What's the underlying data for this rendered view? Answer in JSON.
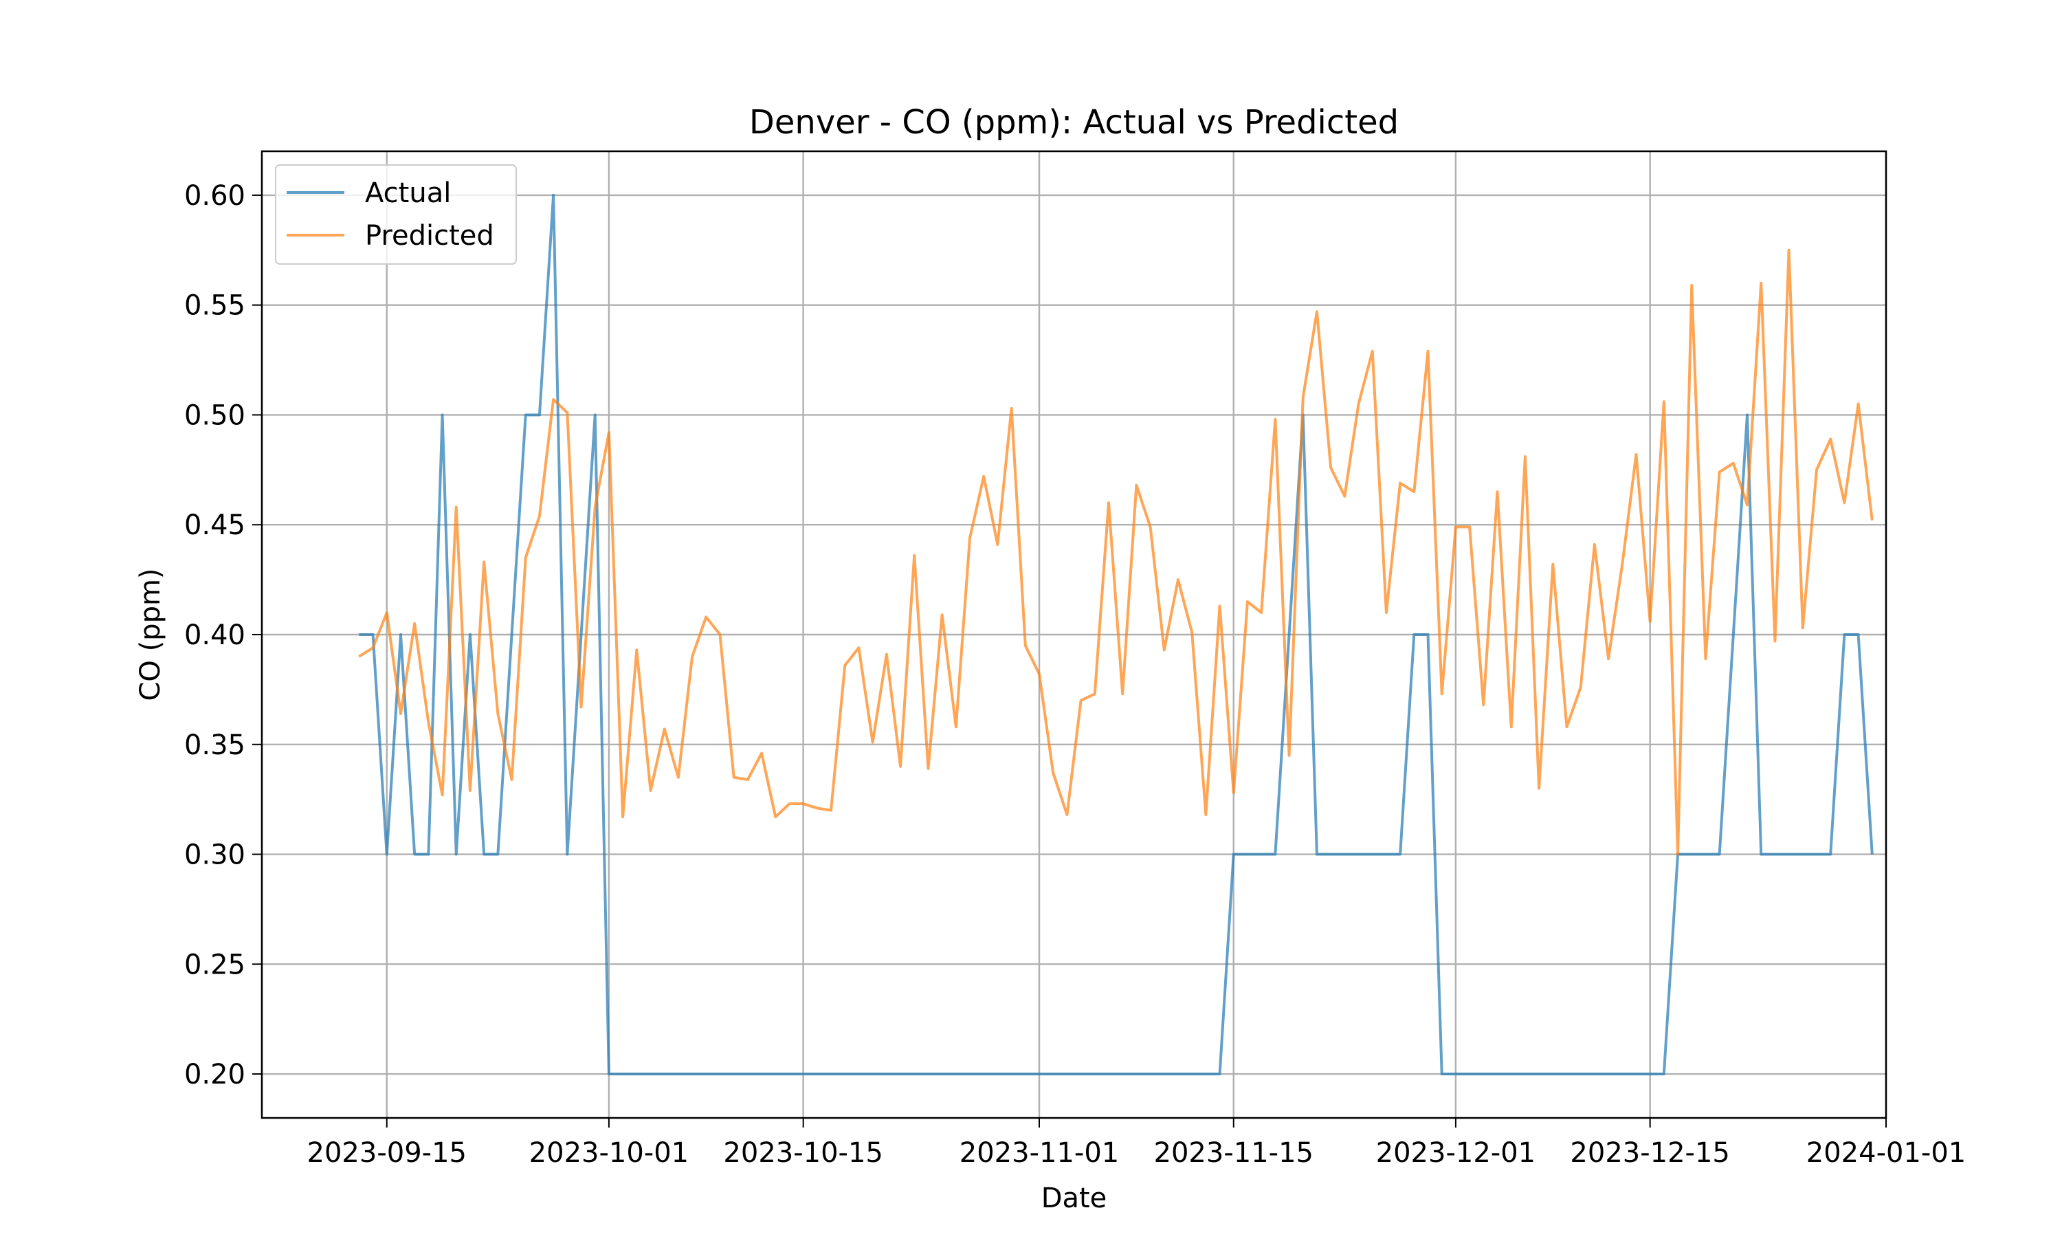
{
  "chart_data": {
    "type": "line",
    "title": "Denver - CO (ppm): Actual vs Predicted",
    "xlabel": "Date",
    "ylabel": "CO (ppm)",
    "x_axis_type": "date",
    "xlim": [
      "2023-09-06",
      "2024-01-01"
    ],
    "ylim": [
      0.18,
      0.62
    ],
    "grid": true,
    "legend_position": "upper left",
    "x_ticks": [
      "2023-09-15",
      "2023-10-01",
      "2023-10-15",
      "2023-11-01",
      "2023-11-15",
      "2023-12-01",
      "2023-12-15",
      "2024-01-01"
    ],
    "y_ticks": [
      "0.20",
      "0.25",
      "0.30",
      "0.35",
      "0.40",
      "0.45",
      "0.50",
      "0.55",
      "0.60"
    ],
    "x": [
      "2023-09-13",
      "2023-09-14",
      "2023-09-15",
      "2023-09-16",
      "2023-09-17",
      "2023-09-18",
      "2023-09-19",
      "2023-09-20",
      "2023-09-21",
      "2023-09-22",
      "2023-09-23",
      "2023-09-24",
      "2023-09-25",
      "2023-09-26",
      "2023-09-27",
      "2023-09-28",
      "2023-09-29",
      "2023-09-30",
      "2023-10-01",
      "2023-10-02",
      "2023-10-03",
      "2023-10-04",
      "2023-10-05",
      "2023-10-06",
      "2023-10-07",
      "2023-10-08",
      "2023-10-09",
      "2023-10-10",
      "2023-10-11",
      "2023-10-12",
      "2023-10-13",
      "2023-10-14",
      "2023-10-15",
      "2023-10-16",
      "2023-10-17",
      "2023-10-18",
      "2023-10-19",
      "2023-10-20",
      "2023-10-21",
      "2023-10-22",
      "2023-10-23",
      "2023-10-24",
      "2023-10-25",
      "2023-10-26",
      "2023-10-27",
      "2023-10-28",
      "2023-10-29",
      "2023-10-30",
      "2023-10-31",
      "2023-11-01",
      "2023-11-02",
      "2023-11-03",
      "2023-11-04",
      "2023-11-05",
      "2023-11-06",
      "2023-11-07",
      "2023-11-08",
      "2023-11-09",
      "2023-11-10",
      "2023-11-11",
      "2023-11-12",
      "2023-11-13",
      "2023-11-14",
      "2023-11-15",
      "2023-11-16",
      "2023-11-17",
      "2023-11-18",
      "2023-11-19",
      "2023-11-20",
      "2023-11-21",
      "2023-11-22",
      "2023-11-23",
      "2023-11-24",
      "2023-11-25",
      "2023-11-26",
      "2023-11-27",
      "2023-11-28",
      "2023-11-29",
      "2023-11-30",
      "2023-12-01",
      "2023-12-02",
      "2023-12-03",
      "2023-12-04",
      "2023-12-05",
      "2023-12-06",
      "2023-12-07",
      "2023-12-08",
      "2023-12-09",
      "2023-12-10",
      "2023-12-11",
      "2023-12-12",
      "2023-12-13",
      "2023-12-14",
      "2023-12-15",
      "2023-12-16",
      "2023-12-17",
      "2023-12-18",
      "2023-12-19",
      "2023-12-20",
      "2023-12-21",
      "2023-12-22",
      "2023-12-23",
      "2023-12-24",
      "2023-12-25",
      "2023-12-26",
      "2023-12-27",
      "2023-12-28",
      "2023-12-29",
      "2023-12-30",
      "2023-12-31"
    ],
    "series": [
      {
        "name": "Actual",
        "color": "#1f77b4",
        "values": [
          0.4,
          0.4,
          0.3,
          0.4,
          0.3,
          0.3,
          0.5,
          0.3,
          0.4,
          0.3,
          0.3,
          0.4,
          0.5,
          0.5,
          0.6,
          0.3,
          0.4,
          0.5,
          0.2,
          0.2,
          0.2,
          0.2,
          0.2,
          0.2,
          0.2,
          0.2,
          0.2,
          0.2,
          0.2,
          0.2,
          0.2,
          0.2,
          0.2,
          0.2,
          0.2,
          0.2,
          0.2,
          0.2,
          0.2,
          0.2,
          0.2,
          0.2,
          0.2,
          0.2,
          0.2,
          0.2,
          0.2,
          0.2,
          0.2,
          0.2,
          0.2,
          0.2,
          0.2,
          0.2,
          0.2,
          0.2,
          0.2,
          0.2,
          0.2,
          0.2,
          0.2,
          0.2,
          0.2,
          0.3,
          0.3,
          0.3,
          0.3,
          0.4,
          0.5,
          0.3,
          0.3,
          0.3,
          0.3,
          0.3,
          0.3,
          0.3,
          0.4,
          0.4,
          0.2,
          0.2,
          0.2,
          0.2,
          0.2,
          0.2,
          0.2,
          0.2,
          0.2,
          0.2,
          0.2,
          0.2,
          0.2,
          0.2,
          0.2,
          0.2,
          0.2,
          0.3,
          0.3,
          0.3,
          0.3,
          0.4,
          0.5,
          0.3,
          0.3,
          0.3,
          0.3,
          0.3,
          0.3,
          0.4,
          0.4,
          0.3
        ]
      },
      {
        "name": "Predicted",
        "color": "#ff7f0e",
        "values": [
          0.39,
          0.394,
          0.41,
          0.364,
          0.405,
          0.36,
          0.327,
          0.458,
          0.329,
          0.433,
          0.364,
          0.334,
          0.435,
          0.454,
          0.507,
          0.501,
          0.367,
          0.458,
          0.492,
          0.317,
          0.393,
          0.329,
          0.357,
          0.335,
          0.39,
          0.408,
          0.4,
          0.335,
          0.334,
          0.346,
          0.317,
          0.323,
          0.323,
          0.321,
          0.32,
          0.386,
          0.394,
          0.351,
          0.391,
          0.34,
          0.436,
          0.339,
          0.409,
          0.358,
          0.444,
          0.472,
          0.441,
          0.503,
          0.395,
          0.382,
          0.337,
          0.318,
          0.37,
          0.373,
          0.46,
          0.373,
          0.468,
          0.449,
          0.393,
          0.425,
          0.401,
          0.318,
          0.413,
          0.328,
          0.415,
          0.41,
          0.498,
          0.345,
          0.508,
          0.547,
          0.476,
          0.463,
          0.505,
          0.529,
          0.41,
          0.469,
          0.465,
          0.529,
          0.373,
          0.449,
          0.449,
          0.368,
          0.465,
          0.358,
          0.481,
          0.33,
          0.432,
          0.358,
          0.376,
          0.441,
          0.389,
          0.432,
          0.482,
          0.406,
          0.506,
          0.3,
          0.559,
          0.389,
          0.474,
          0.478,
          0.459,
          0.56,
          0.397,
          0.575,
          0.403,
          0.475,
          0.489,
          0.46,
          0.505,
          0.452
        ]
      }
    ]
  }
}
